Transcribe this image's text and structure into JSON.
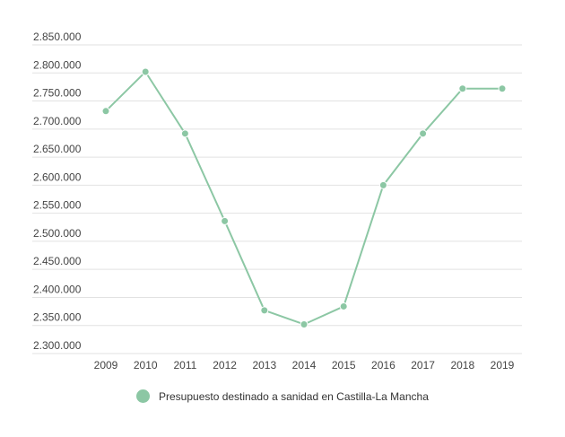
{
  "chart_data": {
    "type": "line",
    "title": "",
    "xlabel": "",
    "ylabel": "",
    "categories": [
      "2009",
      "2010",
      "2011",
      "2012",
      "2013",
      "2014",
      "2015",
      "2016",
      "2017",
      "2018",
      "2019"
    ],
    "series": [
      {
        "name": "Presupuesto destinado a sanidad en Castilla-La Mancha",
        "values": [
          2732000,
          2802000,
          2692000,
          2536000,
          2377000,
          2352000,
          2384000,
          2600000,
          2692000,
          2772000,
          2772000
        ],
        "color": "#8cc7a4"
      }
    ],
    "ylim": [
      2300000,
      2850000
    ],
    "yticks": [
      "2.300.000",
      "2.350.000",
      "2.400.000",
      "2.450.000",
      "2.500.000",
      "2.550.000",
      "2.600.000",
      "2.650.000",
      "2.700.000",
      "2.750.000",
      "2.800.000",
      "2.850.000"
    ],
    "grid": true,
    "legend_position": "bottom"
  }
}
